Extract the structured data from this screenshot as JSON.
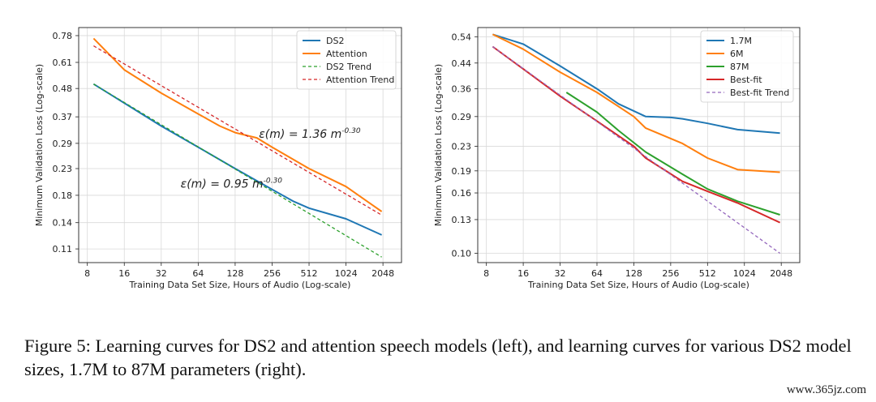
{
  "caption": "Figure 5: Learning curves for DS2 and attention speech models (left), and learning curves for various DS2 model sizes, 1.7M to 87M parameters (right).",
  "watermark": "www.365jz.com",
  "chart_data": [
    {
      "type": "line",
      "xscale": "log2",
      "yscale": "log",
      "xlabel": "Training Data Set Size, Hours of Audio (Log-scale)",
      "ylabel": "Minimum Validation Loss (Log-scale)",
      "xlim": [
        6.8,
        2900
      ],
      "ylim": [
        0.097,
        0.84
      ],
      "xticks": [
        8,
        16,
        32,
        64,
        128,
        256,
        512,
        1024,
        2048
      ],
      "yticks": [
        0.78,
        0.61,
        0.48,
        0.37,
        0.29,
        0.23,
        0.18,
        0.14,
        0.11
      ],
      "grid": true,
      "legend": "top-right",
      "annotations": [
        {
          "text": "ε(m) = 1.36 m",
          "sup": "-0.30",
          "x": 200,
          "y": 0.305
        },
        {
          "text": "ε(m) = 0.95 m",
          "sup": "-0.30",
          "x": 46,
          "y": 0.193
        }
      ],
      "series": [
        {
          "name": "DS2",
          "color": "#1f77b4",
          "dash": "solid",
          "points": [
            [
              9,
              0.5
            ],
            [
              16,
              0.42
            ],
            [
              32,
              0.34
            ],
            [
              64,
              0.28
            ],
            [
              128,
              0.23
            ],
            [
              256,
              0.19
            ],
            [
              384,
              0.17
            ],
            [
              512,
              0.16
            ],
            [
              1024,
              0.145
            ],
            [
              2000,
              0.125
            ]
          ]
        },
        {
          "name": "Attention",
          "color": "#ff7f0e",
          "dash": "solid",
          "points": [
            [
              9,
              0.76
            ],
            [
              16,
              0.57
            ],
            [
              32,
              0.46
            ],
            [
              64,
              0.38
            ],
            [
              96,
              0.34
            ],
            [
              128,
              0.32
            ],
            [
              192,
              0.305
            ],
            [
              256,
              0.28
            ],
            [
              512,
              0.23
            ],
            [
              1024,
              0.195
            ],
            [
              2000,
              0.155
            ]
          ]
        },
        {
          "name": "DS2 Trend",
          "color": "#2ca02c",
          "dash": "dashed",
          "points": [
            [
              9,
              0.5
            ],
            [
              2000,
              0.102
            ]
          ]
        },
        {
          "name": "Attention Trend",
          "color": "#d62728",
          "dash": "dashed",
          "points": [
            [
              9,
              0.71
            ],
            [
              2000,
              0.15
            ]
          ]
        }
      ]
    },
    {
      "type": "line",
      "xscale": "log2",
      "yscale": "log",
      "xlabel": "Training Data Set Size, Hours of Audio (Log-scale)",
      "ylabel": "Minimum Validation Loss (Log-scale)",
      "xlim": [
        6.8,
        2900
      ],
      "ylim": [
        0.093,
        0.58
      ],
      "xticks": [
        8,
        16,
        32,
        64,
        128,
        256,
        512,
        1024,
        2048
      ],
      "yticks": [
        0.54,
        0.44,
        0.36,
        0.29,
        0.23,
        0.19,
        0.16,
        0.13,
        0.1
      ],
      "grid": true,
      "legend": "top-right",
      "series": [
        {
          "name": "1.7M",
          "color": "#1f77b4",
          "dash": "solid",
          "points": [
            [
              9,
              0.55
            ],
            [
              16,
              0.51
            ],
            [
              32,
              0.43
            ],
            [
              64,
              0.36
            ],
            [
              96,
              0.32
            ],
            [
              160,
              0.29
            ],
            [
              256,
              0.288
            ],
            [
              320,
              0.285
            ],
            [
              512,
              0.275
            ],
            [
              900,
              0.262
            ],
            [
              2000,
              0.255
            ]
          ]
        },
        {
          "name": "6M",
          "color": "#ff7f0e",
          "dash": "solid",
          "points": [
            [
              9,
              0.55
            ],
            [
              16,
              0.49
            ],
            [
              32,
              0.41
            ],
            [
              64,
              0.35
            ],
            [
              128,
              0.29
            ],
            [
              160,
              0.265
            ],
            [
              320,
              0.235
            ],
            [
              512,
              0.21
            ],
            [
              900,
              0.192
            ],
            [
              2000,
              0.188
            ]
          ]
        },
        {
          "name": "87M",
          "color": "#2ca02c",
          "dash": "solid",
          "points": [
            [
              36,
              0.35
            ],
            [
              64,
              0.3
            ],
            [
              96,
              0.26
            ],
            [
              160,
              0.22
            ],
            [
              320,
              0.185
            ],
            [
              512,
              0.165
            ],
            [
              900,
              0.15
            ],
            [
              2000,
              0.135
            ]
          ]
        },
        {
          "name": "Best-fit",
          "color": "#d62728",
          "dash": "solid",
          "points": [
            [
              9,
              0.5
            ],
            [
              16,
              0.42
            ],
            [
              32,
              0.34
            ],
            [
              64,
              0.28
            ],
            [
              128,
              0.23
            ],
            [
              160,
              0.21
            ],
            [
              320,
              0.175
            ],
            [
              512,
              0.162
            ],
            [
              900,
              0.148
            ],
            [
              2000,
              0.127
            ]
          ]
        },
        {
          "name": "Best-fit Trend",
          "color": "#9467bd",
          "dash": "dashed",
          "points": [
            [
              9,
              0.5
            ],
            [
              2000,
              0.1
            ]
          ]
        }
      ]
    }
  ]
}
